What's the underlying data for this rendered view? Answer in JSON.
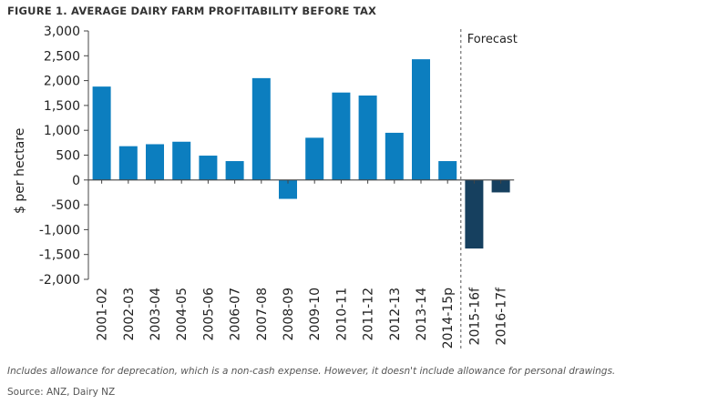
{
  "title": "FIGURE 1. AVERAGE DAIRY FARM PROFITABILITY BEFORE TAX",
  "footnote": "Includes allowance for deprecation, which is a non-cash expense. However, it doesn't include allowance for personal drawings.",
  "source": "Source: ANZ, Dairy NZ",
  "colors": {
    "actual": "#0c7ebf",
    "forecast": "#16405f",
    "axis": "#444444",
    "divider": "#555555"
  },
  "chart_data": {
    "type": "bar",
    "title": "FIGURE 1. AVERAGE DAIRY FARM PROFITABILITY BEFORE TAX",
    "xlabel": "",
    "ylabel": "$ per hectare",
    "ylim": [
      -2000,
      3000
    ],
    "yticks": [
      3000,
      2500,
      2000,
      1500,
      1000,
      500,
      0,
      -500,
      -1000,
      -1500,
      -2000
    ],
    "ytick_labels": [
      "3,000",
      "2,500",
      "2,000",
      "1,500",
      "1,000",
      "500",
      "0",
      "-500",
      "-1,000",
      "-1,500",
      "-2,000"
    ],
    "grid": false,
    "categories": [
      "2001-02",
      "2002-03",
      "2003-04",
      "2004-05",
      "2005-06",
      "2006-07",
      "2007-08",
      "2008-09",
      "2009-10",
      "2010-11",
      "2011-12",
      "2012-13",
      "2013-14",
      "2014-15p",
      "2015-16f",
      "2016-17f"
    ],
    "values": [
      1880,
      680,
      720,
      770,
      490,
      380,
      2050,
      -380,
      850,
      1760,
      1700,
      950,
      2430,
      380,
      -1380,
      -250
    ],
    "forecast_from_index": 14,
    "annotation": "Forecast"
  }
}
